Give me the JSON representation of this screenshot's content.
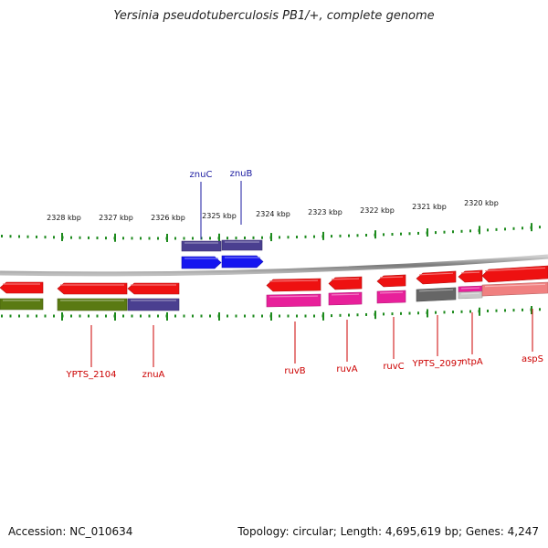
{
  "title": "Yersinia pseudotuberculosis PB1/+, complete genome",
  "footer": {
    "accession": "Accession: NC_010634",
    "summary": "Topology: circular; Length: 4,695,619 bp; Genes: 4,247"
  },
  "colors": {
    "backbone": "#8a8a8a",
    "tick": "#1c8a1c",
    "forward_label": "#1a1aa0",
    "reverse_label": "#cc0000",
    "cds_red": "#ee1111",
    "olive": "#5a7a12",
    "navy": "#4a3f90",
    "blue": "#1515f0",
    "magenta": "#e8209a",
    "gray": "#666666",
    "salmon": "#f08080"
  },
  "scale_ticks": [
    {
      "label": "2328 kbp"
    },
    {
      "label": "2327 kbp"
    },
    {
      "label": "2326 kbp"
    },
    {
      "label": "2325 kbp"
    },
    {
      "label": "2324 kbp"
    },
    {
      "label": "2323 kbp"
    },
    {
      "label": "2322 kbp"
    },
    {
      "label": "2321 kbp"
    },
    {
      "label": "2320 kbp"
    }
  ],
  "genes_forward": [
    {
      "name": "znuC",
      "strand": "+"
    },
    {
      "name": "znuB",
      "strand": "+"
    }
  ],
  "genes_reverse": [
    {
      "name": "YPTS_2104",
      "strand": "-"
    },
    {
      "name": "znuA",
      "strand": "-"
    },
    {
      "name": "ruvB",
      "strand": "-"
    },
    {
      "name": "ruvA",
      "strand": "-"
    },
    {
      "name": "ruvC",
      "strand": "-"
    },
    {
      "name": "YPTS_2097",
      "strand": "-"
    },
    {
      "name": "ntpA",
      "strand": "-"
    },
    {
      "name": "aspS",
      "strand": "-"
    }
  ]
}
